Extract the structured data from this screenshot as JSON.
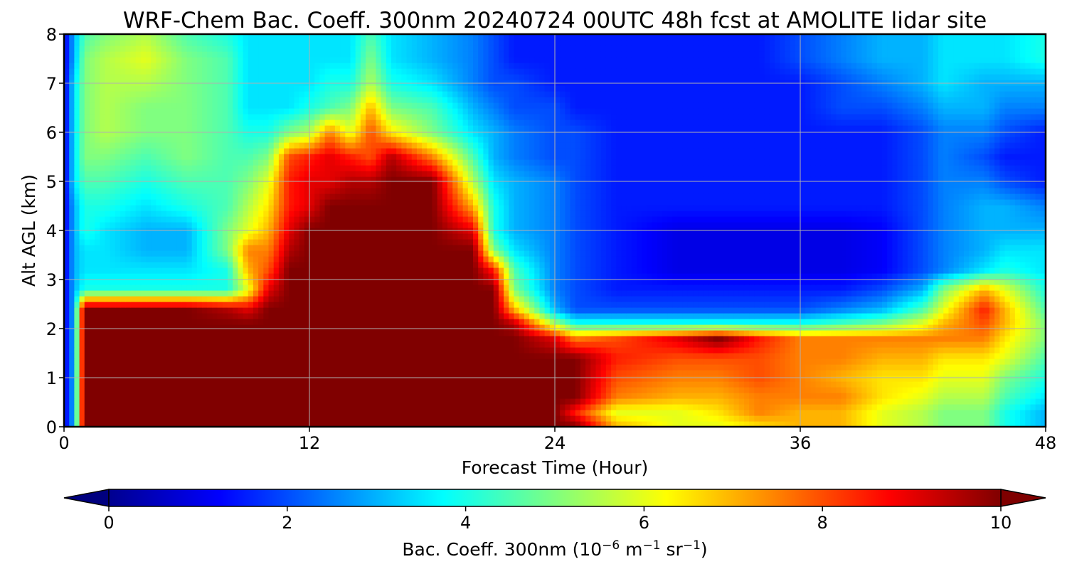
{
  "chart_data": {
    "type": "heatmap",
    "title": "WRF-Chem Bac. Coeff. 300nm  20240724 00UTC 48h fcst at AMOLITE lidar site",
    "xlabel": "Forecast Time (Hour)",
    "ylabel": "Alt AGL (km)",
    "xlim": [
      0,
      48
    ],
    "ylim": [
      0,
      8
    ],
    "xticks": [
      "0",
      "12",
      "24",
      "36",
      "48"
    ],
    "yticks": [
      "0",
      "1",
      "2",
      "3",
      "4",
      "5",
      "6",
      "7",
      "8"
    ],
    "grid": true,
    "colormap": "jet",
    "colorbar": {
      "label_main": "Bac. Coeff. 300nm  (10",
      "exp1": "−6",
      "label_mid": " m",
      "exp2": "−1",
      "label_sr": " sr",
      "exp3": "−1",
      "label_end": ")",
      "range": [
        0,
        10
      ],
      "ticks": [
        "0",
        "2",
        "4",
        "6",
        "8",
        "10"
      ],
      "extend": "both",
      "placement": "bottom"
    },
    "times": [
      0,
      0.5,
      1,
      2,
      4,
      6,
      8,
      9,
      10,
      11,
      12,
      13,
      14,
      15,
      16,
      18,
      20,
      21,
      22,
      24,
      25,
      27,
      30,
      32,
      34,
      36,
      38,
      40,
      42,
      43,
      45,
      46,
      48
    ],
    "altitudes": [
      0,
      0.3,
      0.6,
      1.0,
      1.4,
      1.8,
      2.1,
      2.4,
      2.8,
      3.2,
      3.6,
      4.0,
      4.5,
      5.0,
      5.5,
      6.0,
      6.5,
      7.0,
      7.5,
      8.0
    ],
    "values": [
      [
        1,
        3,
        10,
        10,
        10,
        10,
        10,
        10,
        10,
        10,
        10,
        10,
        10,
        10,
        10,
        10,
        10,
        10,
        10,
        10,
        10,
        7,
        6,
        6,
        6.5,
        7,
        7,
        6,
        5.5,
        5,
        5,
        4,
        3
      ],
      [
        1,
        3,
        10,
        10,
        10,
        10,
        10,
        10,
        10,
        10,
        10,
        10,
        10,
        10,
        10,
        10,
        10,
        10,
        10,
        10,
        8.5,
        6,
        6,
        6.5,
        7.5,
        7,
        7,
        6,
        5.5,
        5,
        5,
        4,
        3
      ],
      [
        1,
        3,
        10,
        10,
        10,
        10,
        10,
        10,
        10,
        10,
        10,
        10,
        10,
        10,
        10,
        10,
        10,
        10,
        10,
        10,
        10,
        7.5,
        7,
        7,
        7.5,
        7.5,
        7.5,
        6.5,
        6,
        5.5,
        5.5,
        4.5,
        3.5
      ],
      [
        1,
        3,
        10,
        10,
        10,
        10,
        10,
        10,
        10,
        10,
        10,
        10,
        10,
        10,
        10,
        10,
        10,
        10,
        10,
        10,
        10,
        8,
        7.5,
        7.5,
        8,
        7.5,
        7,
        6.5,
        6.5,
        6,
        6,
        5,
        4
      ],
      [
        1,
        3,
        10,
        10,
        10,
        10,
        10,
        10,
        10,
        10,
        10,
        10,
        10,
        10,
        10,
        10,
        10,
        10,
        10,
        10,
        10,
        8.5,
        8,
        8,
        8,
        7.5,
        7.5,
        7,
        7,
        6.5,
        6.5,
        6,
        4.5
      ],
      [
        1,
        3,
        10,
        10,
        10,
        10,
        10,
        10,
        10,
        10,
        10,
        10,
        10,
        10,
        10,
        10,
        10,
        10,
        10,
        9,
        7.5,
        8,
        9,
        10,
        8.5,
        7.5,
        7.5,
        7.5,
        7.5,
        7.5,
        7.5,
        6.5,
        5
      ],
      [
        1,
        3,
        10,
        10,
        10,
        10,
        10,
        10,
        10,
        10,
        10,
        10,
        10,
        10,
        10,
        10,
        10,
        10,
        9.5,
        5.5,
        4,
        4,
        4,
        4,
        4,
        4,
        4.5,
        5,
        6,
        7,
        8,
        7,
        5
      ],
      [
        1,
        3,
        10,
        10,
        10,
        10,
        9.5,
        9,
        10,
        10,
        10,
        10,
        10,
        10,
        10,
        10,
        10,
        10,
        7,
        3,
        2,
        2,
        2,
        2,
        2,
        2,
        2.5,
        3,
        4.5,
        6,
        8.5,
        7,
        4.5
      ],
      [
        1,
        3,
        4,
        4,
        4,
        4,
        4,
        6,
        9,
        10,
        10,
        10,
        10,
        10,
        10,
        10,
        10,
        10,
        5,
        2.5,
        2,
        1.5,
        1.5,
        1.5,
        1.5,
        1.5,
        1.5,
        2,
        3,
        5,
        7,
        6,
        4
      ],
      [
        1,
        3,
        3.5,
        3.5,
        3.5,
        3.5,
        4,
        7,
        8,
        10,
        10,
        10,
        10,
        10,
        10,
        10,
        10,
        8.5,
        4.5,
        2.5,
        2,
        1.5,
        1,
        1,
        1,
        1,
        1,
        1.2,
        2,
        2.5,
        3.5,
        4,
        3.5
      ],
      [
        1,
        3,
        3.5,
        3.5,
        3,
        3,
        5,
        7.5,
        7.5,
        9.5,
        10,
        10,
        10,
        10,
        10,
        10,
        10,
        5,
        3.5,
        2.5,
        2,
        1.5,
        1,
        1,
        1,
        1,
        1,
        1.2,
        2,
        2.5,
        3,
        3.5,
        3.5
      ],
      [
        1,
        3,
        4,
        3.5,
        3,
        3,
        5,
        6,
        7,
        9,
        10,
        10,
        10,
        10,
        10,
        10,
        9,
        4,
        3,
        2.5,
        2,
        1.5,
        1,
        1,
        1,
        1,
        1,
        1.2,
        2,
        2.5,
        3,
        3,
        3
      ],
      [
        1,
        3,
        4,
        4,
        3.5,
        4,
        4.5,
        5.5,
        6.5,
        8.5,
        9,
        10,
        10,
        10,
        10,
        10,
        7,
        4,
        3,
        2.5,
        2,
        1.5,
        1.5,
        1.5,
        1.5,
        1.5,
        1.5,
        1.5,
        2,
        2.5,
        3,
        3,
        2.5
      ],
      [
        1,
        3.5,
        4.5,
        4.5,
        4,
        4.5,
        4.5,
        5,
        6,
        8.5,
        9,
        9,
        9.5,
        9.5,
        10,
        10,
        5.5,
        3.5,
        3,
        2.5,
        2,
        1.5,
        1.5,
        1.5,
        1.5,
        1.5,
        1.5,
        1.5,
        2,
        2.5,
        2.5,
        2,
        1.5
      ],
      [
        1,
        3.5,
        5,
        5,
        4.5,
        5,
        4.5,
        4.5,
        5,
        8,
        8.5,
        9,
        8.5,
        8,
        9.5,
        7.5,
        4.5,
        3,
        2.5,
        2,
        2,
        1.5,
        1.5,
        1.5,
        1.5,
        1.5,
        1.5,
        1.5,
        2,
        2.5,
        2,
        1.5,
        1.5
      ],
      [
        1,
        3.5,
        5,
        5.5,
        5,
        5,
        4.5,
        4,
        4,
        5,
        5.5,
        7.5,
        6,
        8,
        6.5,
        5,
        3.5,
        3,
        2.5,
        2,
        2,
        1.5,
        1.5,
        1.5,
        1.5,
        1.5,
        1.5,
        1.5,
        2,
        2.5,
        2.5,
        2,
        1.5
      ],
      [
        1,
        3.5,
        5,
        5.5,
        5,
        5,
        4.5,
        3.5,
        3.5,
        3.5,
        4,
        4.5,
        5,
        7,
        5,
        4.5,
        3,
        2.5,
        2,
        2,
        1.5,
        1.5,
        1.5,
        1.5,
        1.5,
        1.5,
        2,
        2,
        2.5,
        3,
        3,
        2.5,
        2.5
      ],
      [
        1,
        3.5,
        5,
        5.5,
        5.5,
        5,
        4.5,
        3.5,
        3.5,
        3.5,
        3.5,
        4,
        4,
        5.5,
        4,
        3.5,
        2.5,
        2,
        2,
        1.5,
        1.5,
        1.5,
        1.5,
        1.5,
        1.5,
        1.5,
        2,
        2.5,
        3,
        3.5,
        3,
        3,
        3
      ],
      [
        1,
        3,
        5,
        5.5,
        6,
        5,
        4.5,
        3.5,
        3.5,
        3.5,
        3.5,
        3.5,
        3.5,
        5,
        3.5,
        3,
        2.5,
        2,
        1.5,
        1.5,
        1.5,
        1.5,
        1.5,
        1.5,
        1.5,
        2,
        2.5,
        3,
        3,
        3.5,
        3.5,
        3.5,
        4
      ],
      [
        1,
        3,
        4.5,
        5,
        5.5,
        4.5,
        4,
        3.5,
        3.5,
        3.5,
        3.5,
        3.5,
        3.5,
        4.5,
        3.5,
        3,
        2.5,
        2,
        1.5,
        1.5,
        1.5,
        1.5,
        1.5,
        1.5,
        1.5,
        2,
        2.5,
        3,
        3,
        3.5,
        3.5,
        3.5,
        4
      ]
    ]
  }
}
